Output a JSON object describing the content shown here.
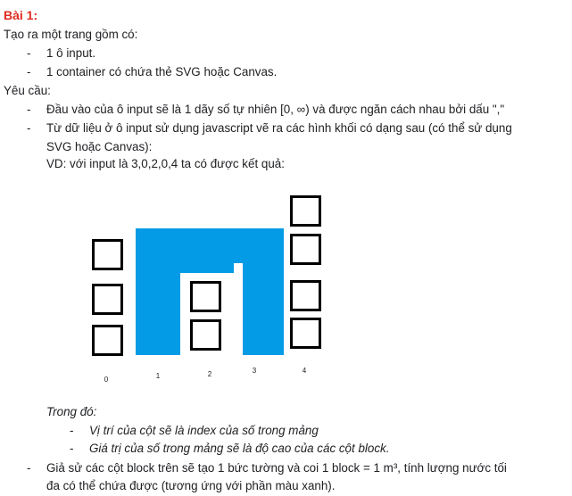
{
  "heading": "Bài 1:",
  "intro": "Tạo ra một trang gồm có:",
  "items": [
    "1 ô input.",
    "1 container có chứa thẻ SVG hoặc Canvas."
  ],
  "requirements_label": "Yêu cầu:",
  "req1": "Đầu vào của ô input sẽ là 1 dãy số tự nhiên [0, ∞) và được ngăn cách nhau bởi dấu \",\"",
  "req2_line1": "Từ dữ liệu ở ô input sử dụng javascript vẽ ra các hình khối có dạng sau (có thể sử dụng",
  "req2_line2": "SVG hoặc Canvas):",
  "example": "VD: với input là 3,0,2,0,4 ta có được kết quả:",
  "dash": "-",
  "diagram": {
    "heights": [
      3,
      0,
      2,
      0,
      4
    ],
    "index_labels": [
      "0",
      "1",
      "2",
      "3",
      "4"
    ],
    "water_color": "#039be5",
    "block_color": "#000000"
  },
  "where_label": "Trong đó:",
  "where_items": [
    "Vị trí của cột sẽ là index của số trong mảng",
    "Giá trị của số trong mảng sẽ là độ cao của các cột block."
  ],
  "final_line1": "Giả sử các cột block trên sẽ tạo 1 bức tường và coi 1 block = 1 m³, tính lượng nước tối",
  "final_line2": "đa có thể chứa được (tương ứng với phần màu xanh)."
}
